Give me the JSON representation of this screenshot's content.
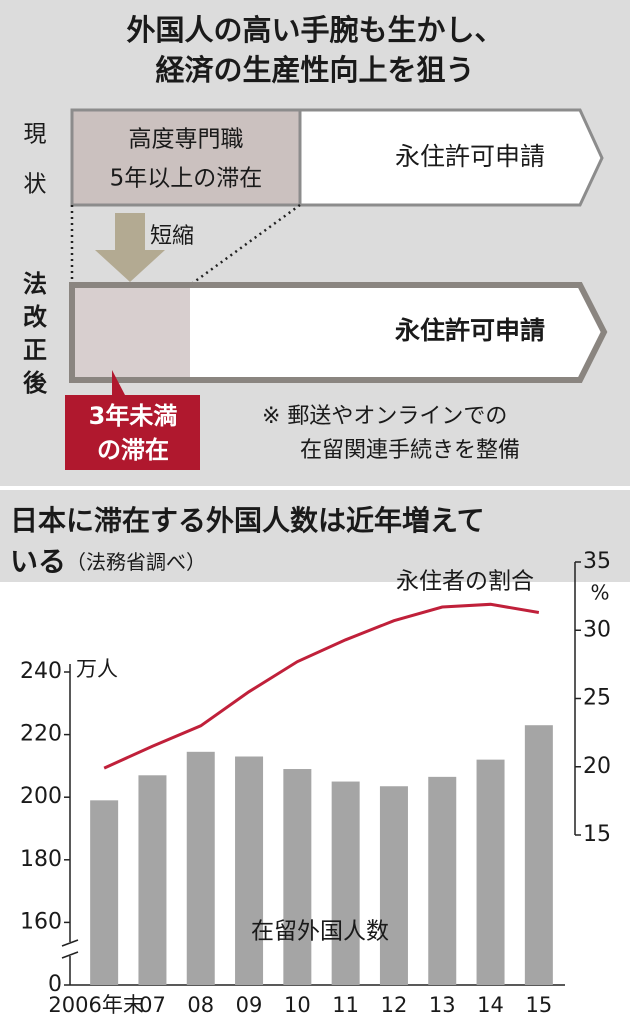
{
  "diagram": {
    "title": [
      "外国人の高い手腕も生かし、",
      "経済の生産性向上を狙う"
    ],
    "current_label": [
      "現",
      "状"
    ],
    "current_box": [
      "高度専門職",
      "5年以上の滞在"
    ],
    "current_target": "永住許可申請",
    "shorten": "短縮",
    "revised_label": [
      "法",
      "改",
      "正",
      "後"
    ],
    "revised_target": "永住許可申請",
    "revised_box": [
      "3年未満",
      "の滞在"
    ],
    "note": [
      "※ 郵送やオンラインでの",
      "在留関連手続きを整備"
    ]
  },
  "chart_data": {
    "type": "bar",
    "title": "日本に滞在する外国人数は近年増えて",
    "title_cont": "いる",
    "subtitle": "（法務省調べ）",
    "ylabel": "万人",
    "y2_unit": "%",
    "categories": [
      "2006年末",
      "07",
      "08",
      "09",
      "10",
      "11",
      "12",
      "13",
      "14",
      "15"
    ],
    "series": [
      {
        "name": "在留外国人数",
        "type": "bar",
        "color": "#a5a5a5",
        "values": [
          199,
          207,
          214.5,
          213,
          209,
          205,
          203.5,
          206.5,
          212,
          223
        ]
      },
      {
        "name": "永住者の割合",
        "type": "line",
        "axis": "y2",
        "color": "#c0203a",
        "values": [
          19.9,
          21.5,
          23.0,
          25.5,
          27.7,
          29.3,
          30.7,
          31.7,
          31.9,
          31.3
        ]
      }
    ],
    "ylim": [
      140,
      240
    ],
    "yticks": [
      0,
      160,
      180,
      200,
      220,
      240
    ],
    "axis_break": true,
    "y2lim": [
      15,
      35
    ],
    "y2ticks": [
      15,
      20,
      25,
      30,
      35
    ]
  }
}
